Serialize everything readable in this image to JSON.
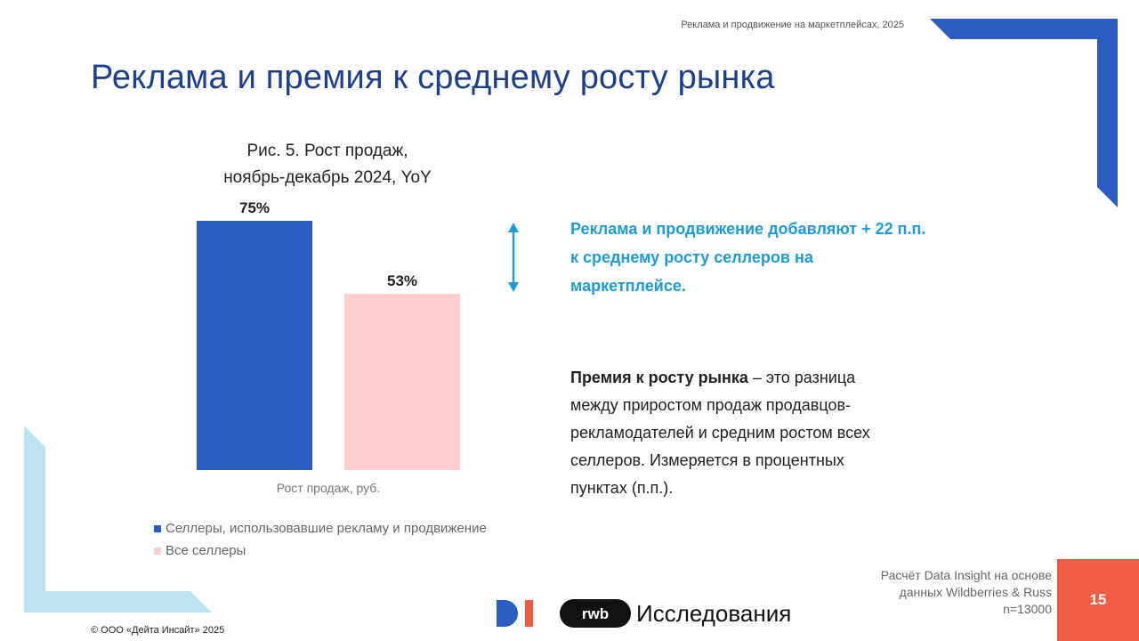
{
  "header": {
    "note": "Реклама и продвижение на маркетплейсах, 2025"
  },
  "title": "Реклама и премия к среднему росту рынка",
  "chart": {
    "fig_title_line1": "Рис. 5. Рост продаж,",
    "fig_title_line2": "ноябрь-декабрь 2024, YoY"
  },
  "chart_data": {
    "type": "bar",
    "title": "Рис. 5. Рост продаж, ноябрь-декабрь 2024, YoY",
    "categories": [
      "Рост продаж, руб."
    ],
    "xlabel": "Рост продаж, руб.",
    "ylabel": "",
    "unit": "%",
    "ylim": [
      0,
      75
    ],
    "grid": false,
    "legend_position": "bottom",
    "series": [
      {
        "name": "Селлеры, использовавшие рекламу и продвижение",
        "values": [
          75
        ],
        "label": "75%",
        "color": "#2a5ec4"
      },
      {
        "name": "Все селлеры",
        "values": [
          53
        ],
        "label": "53%",
        "color": "#ffcccc"
      }
    ]
  },
  "highlight": {
    "line1": "Реклама и продвижение добавляют + 22 п.п.",
    "line2": "к среднему росту селлеров на",
    "line3": "маркетплейсе."
  },
  "definition": {
    "term": "Премия к росту рынка",
    "line1_rest": " – это разница",
    "line2": "между приростом продаж продавцов-",
    "line3": "рекламодателей и средним ростом всех",
    "line4": "селлеров. Измеряется в процентных",
    "line5": "пунктах (п.п.)."
  },
  "source": {
    "line1": "Расчёт Data Insight на основе",
    "line2": "данных Wildberries & Russ",
    "line3": "n=13000"
  },
  "page_number": "15",
  "footer": {
    "copyright": "© ООО «Дейта Инсайт» 2025",
    "logo_di": "DI",
    "logo_rwb": "rwb",
    "rwb_research": "Исследования"
  },
  "colors": {
    "brand_blue": "#1d3f8f",
    "accent_blue": "#2a5ec4",
    "highlight_blue": "#1e9ad6",
    "light_blue": "#bde3f1",
    "pink": "#ffcccc",
    "page_red": "#f25c45"
  },
  "icons": {
    "double_arrow": "double-headed-vertical-arrow-icon",
    "corner_top_right": "blue-corner-bracket",
    "corner_bottom_left": "light-blue-corner-bracket"
  }
}
